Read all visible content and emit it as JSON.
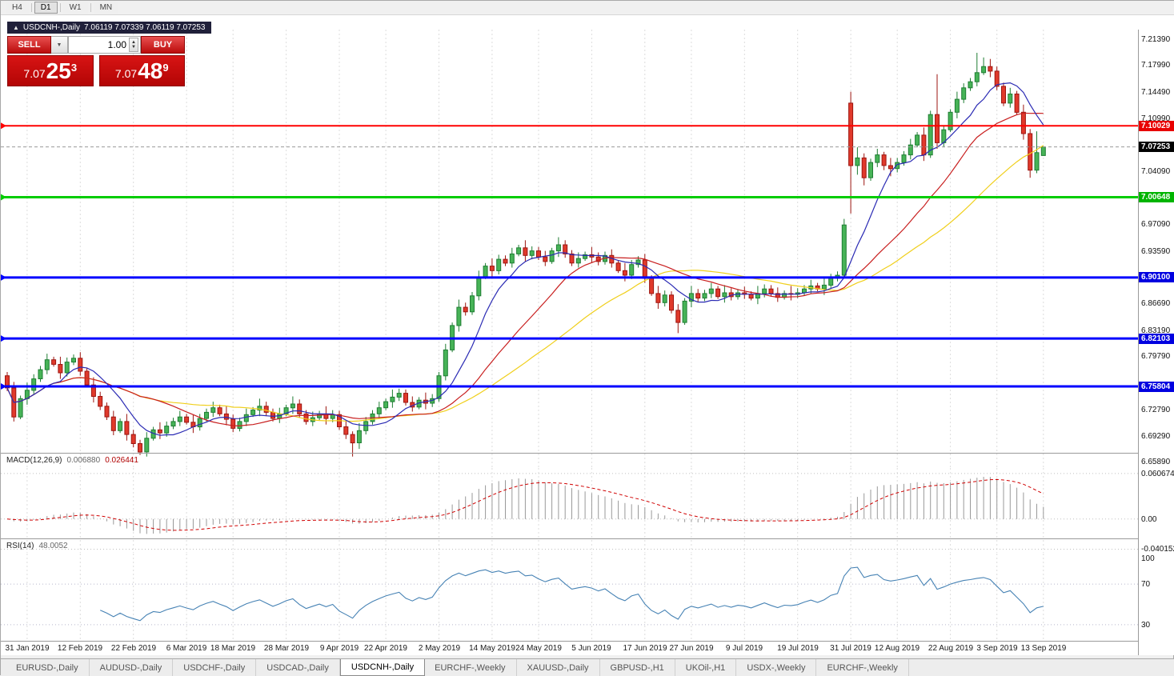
{
  "window": {
    "timeframes": [
      {
        "label": "H4",
        "active": false
      },
      {
        "label": "D1",
        "active": true
      },
      {
        "label": "W1",
        "active": false
      },
      {
        "label": "MN",
        "active": false
      }
    ]
  },
  "chart": {
    "marker": "▲",
    "title": "USDCNH-,Daily",
    "ohlc": "7.06119 7.07339 7.06119 7.07253"
  },
  "trade_panel": {
    "sell_label": "SELL",
    "buy_label": "BUY",
    "volume": "1.00",
    "sell_price": {
      "big": "7.07",
      "pips": "25",
      "sup": "3"
    },
    "buy_price": {
      "big": "7.07",
      "pips": "48",
      "sup": "9"
    }
  },
  "price_axis": {
    "labels": [
      {
        "text": "7.21390",
        "price": 7.2139
      },
      {
        "text": "7.17990",
        "price": 7.1799
      },
      {
        "text": "7.14490",
        "price": 7.1449
      },
      {
        "text": "7.10990",
        "price": 7.1099
      },
      {
        "text": "7.04090",
        "price": 7.0409
      },
      {
        "text": "6.97090",
        "price": 6.9709
      },
      {
        "text": "6.93590",
        "price": 6.9359
      },
      {
        "text": "6.86690",
        "price": 6.8669
      },
      {
        "text": "6.83190",
        "price": 6.8319
      },
      {
        "text": "6.79790",
        "price": 6.7979
      },
      {
        "text": "6.72790",
        "price": 6.7279
      },
      {
        "text": "6.69290",
        "price": 6.6929
      },
      {
        "text": "6.65890",
        "price": 6.6589
      }
    ],
    "badges": [
      {
        "text": "7.10029",
        "price": 7.10029,
        "bg": "#e80000"
      },
      {
        "text": "7.07253",
        "price": 7.07253,
        "bg": "#000000"
      },
      {
        "text": "7.00648",
        "price": 7.00648,
        "bg": "#00b400"
      },
      {
        "text": "6.90100",
        "price": 6.901,
        "bg": "#0000e0"
      },
      {
        "text": "6.82103",
        "price": 6.82103,
        "bg": "#0000e0"
      },
      {
        "text": "6.75804",
        "price": 6.75804,
        "bg": "#0000e0"
      }
    ]
  },
  "hlines": [
    {
      "price": 7.10029,
      "color": "#ff0000",
      "width": 2
    },
    {
      "price": 7.00648,
      "color": "#00cc00",
      "width": 3
    },
    {
      "price": 6.901,
      "color": "#0000ff",
      "width": 3
    },
    {
      "price": 6.82103,
      "color": "#0000ff",
      "width": 3
    },
    {
      "price": 6.75804,
      "color": "#0000ff",
      "width": 3
    }
  ],
  "current_price": 7.07253,
  "indicators": {
    "macd": {
      "label": "MACD(12,26,9)",
      "value1": "0.006880",
      "value2": "0.026441",
      "axis": {
        "max": 0.068,
        "min": -0.045,
        "labels": [
          {
            "text": "0.060674",
            "value": 0.060674
          },
          {
            "text": "0.00",
            "value": 0
          },
          {
            "text": "-0.040152",
            "value": -0.040152
          }
        ],
        "levels": [
          0.060674,
          0,
          -0.040152
        ]
      }
    },
    "rsi": {
      "label": "RSI(14)",
      "value": "48.0052",
      "axis": {
        "max": 100,
        "min": 0,
        "labels": [
          {
            "text": "100",
            "value": 100
          },
          {
            "text": "70",
            "value": 70
          },
          {
            "text": "30",
            "value": 30
          }
        ],
        "levels": [
          70,
          30
        ]
      }
    }
  },
  "date_axis": {
    "ticks": [
      {
        "label": "31 Jan 2019",
        "index": 3
      },
      {
        "label": "12 Feb 2019",
        "index": 11
      },
      {
        "label": "22 Feb 2019",
        "index": 19
      },
      {
        "label": "6 Mar 2019",
        "index": 27
      },
      {
        "label": "18 Mar 2019",
        "index": 34
      },
      {
        "label": "28 Mar 2019",
        "index": 42
      },
      {
        "label": "9 Apr 2019",
        "index": 50
      },
      {
        "label": "22 Apr 2019",
        "index": 57
      },
      {
        "label": "2 May 2019",
        "index": 65
      },
      {
        "label": "14 May 2019",
        "index": 73
      },
      {
        "label": "24 May 2019",
        "index": 80
      },
      {
        "label": "5 Jun 2019",
        "index": 88
      },
      {
        "label": "17 Jun 2019",
        "index": 96
      },
      {
        "label": "27 Jun 2019",
        "index": 103
      },
      {
        "label": "9 Jul 2019",
        "index": 111
      },
      {
        "label": "19 Jul 2019",
        "index": 119
      },
      {
        "label": "31 Jul 2019",
        "index": 127
      },
      {
        "label": "12 Aug 2019",
        "index": 134
      },
      {
        "label": "22 Aug 2019",
        "index": 142
      },
      {
        "label": "3 Sep 2019",
        "index": 149
      },
      {
        "label": "13 Sep 2019",
        "index": 156
      }
    ]
  },
  "tabs": [
    {
      "label": "EURUSD-,Daily",
      "active": false
    },
    {
      "label": "AUDUSD-,Daily",
      "active": false
    },
    {
      "label": "USDCHF-,Daily",
      "active": false
    },
    {
      "label": "USDCAD-,Daily",
      "active": false
    },
    {
      "label": "USDCNH-,Daily",
      "active": true
    },
    {
      "label": "EURCHF-,Weekly",
      "active": false
    },
    {
      "label": "XAUUSD-,Daily",
      "active": false
    },
    {
      "label": "GBPUSD-,H1",
      "active": false
    },
    {
      "label": "UKOil-,H1",
      "active": false
    },
    {
      "label": "USDX-,Weekly",
      "active": false
    },
    {
      "label": "EURCHF-,Weekly",
      "active": false
    }
  ],
  "chart_data": {
    "type": "candlestick",
    "symbol": "USDCNH-",
    "timeframe": "Daily",
    "axes": {
      "price": {
        "max": 7.2265,
        "min": 6.652
      },
      "macd": {
        "max": 0.068,
        "min": -0.045
      },
      "rsi": {
        "max": 100,
        "min": 0
      }
    },
    "indicator_params": {
      "macd": [
        12,
        26,
        9
      ],
      "rsi": 14,
      "ma_periods": {
        "blue": 8,
        "red": 20,
        "yellow": 34
      }
    },
    "colors": {
      "up_fill": "#47b357",
      "up_stroke": "#1e7d32",
      "down_fill": "#e0392b",
      "down_stroke": "#9c1510",
      "ma_blue": "#2b2bb4",
      "ma_red": "#c81e1e",
      "ma_yellow": "#f0cf1b",
      "macd_bar": "#999999",
      "macd_signal": "#d00000",
      "rsi_line": "#4682b4"
    },
    "candles": [
      [
        6.772,
        6.777,
        6.752,
        6.756
      ],
      [
        6.756,
        6.764,
        6.712,
        6.718
      ],
      [
        6.718,
        6.746,
        6.715,
        6.742
      ],
      [
        6.742,
        6.763,
        6.734,
        6.753
      ],
      [
        6.753,
        6.774,
        6.748,
        6.768
      ],
      [
        6.768,
        6.785,
        6.764,
        6.78
      ],
      [
        6.78,
        6.801,
        6.774,
        6.793
      ],
      [
        6.793,
        6.797,
        6.784,
        6.787
      ],
      [
        6.787,
        6.797,
        6.768,
        6.776
      ],
      [
        6.776,
        6.796,
        6.771,
        6.79
      ],
      [
        6.79,
        6.8,
        6.786,
        6.795
      ],
      [
        6.795,
        6.803,
        6.772,
        6.778
      ],
      [
        6.778,
        6.782,
        6.757,
        6.76
      ],
      [
        6.76,
        6.77,
        6.737,
        6.745
      ],
      [
        6.745,
        6.751,
        6.727,
        6.732
      ],
      [
        6.732,
        6.737,
        6.714,
        6.718
      ],
      [
        6.718,
        6.726,
        6.694,
        6.7
      ],
      [
        6.7,
        6.716,
        6.697,
        6.712
      ],
      [
        6.712,
        6.722,
        6.687,
        6.695
      ],
      [
        6.695,
        6.701,
        6.678,
        6.683
      ],
      [
        6.683,
        6.688,
        6.668,
        6.672
      ],
      [
        6.672,
        6.698,
        6.666,
        6.69
      ],
      [
        6.69,
        6.705,
        6.687,
        6.701
      ],
      [
        6.701,
        6.711,
        6.689,
        6.697
      ],
      [
        6.697,
        6.712,
        6.692,
        6.706
      ],
      [
        6.706,
        6.717,
        6.702,
        6.712
      ],
      [
        6.712,
        6.726,
        6.706,
        6.718
      ],
      [
        6.718,
        6.722,
        6.708,
        6.711
      ],
      [
        6.711,
        6.721,
        6.697,
        6.705
      ],
      [
        6.705,
        6.722,
        6.7,
        6.716
      ],
      [
        6.716,
        6.729,
        6.712,
        6.724
      ],
      [
        6.724,
        6.738,
        6.718,
        6.73
      ],
      [
        6.73,
        6.734,
        6.719,
        6.722
      ],
      [
        6.722,
        6.732,
        6.707,
        6.715
      ],
      [
        6.715,
        6.721,
        6.698,
        6.703
      ],
      [
        6.703,
        6.717,
        6.699,
        6.712
      ],
      [
        6.712,
        6.729,
        6.706,
        6.721
      ],
      [
        6.721,
        6.731,
        6.718,
        6.727
      ],
      [
        6.727,
        6.742,
        6.719,
        6.732
      ],
      [
        6.732,
        6.738,
        6.719,
        6.724
      ],
      [
        6.724,
        6.729,
        6.712,
        6.716
      ],
      [
        6.716,
        6.73,
        6.71,
        6.722
      ],
      [
        6.722,
        6.734,
        6.719,
        6.73
      ],
      [
        6.73,
        6.745,
        6.722,
        6.735
      ],
      [
        6.735,
        6.741,
        6.717,
        6.722
      ],
      [
        6.722,
        6.727,
        6.708,
        6.712
      ],
      [
        6.712,
        6.725,
        6.706,
        6.717
      ],
      [
        6.717,
        6.726,
        6.714,
        6.722
      ],
      [
        6.722,
        6.732,
        6.708,
        6.716
      ],
      [
        6.716,
        6.727,
        6.711,
        6.721
      ],
      [
        6.721,
        6.726,
        6.701,
        6.705
      ],
      [
        6.705,
        6.713,
        6.689,
        6.695
      ],
      [
        6.695,
        6.699,
        6.666,
        6.684
      ],
      [
        6.684,
        6.71,
        6.676,
        6.7
      ],
      [
        6.7,
        6.718,
        6.695,
        6.712
      ],
      [
        6.712,
        6.727,
        6.708,
        6.722
      ],
      [
        6.722,
        6.738,
        6.716,
        6.73
      ],
      [
        6.73,
        6.742,
        6.727,
        6.738
      ],
      [
        6.738,
        6.754,
        6.73,
        6.744
      ],
      [
        6.744,
        6.755,
        6.739,
        6.749
      ],
      [
        6.749,
        6.754,
        6.733,
        6.737
      ],
      [
        6.737,
        6.745,
        6.725,
        6.731
      ],
      [
        6.731,
        6.744,
        6.728,
        6.74
      ],
      [
        6.74,
        6.75,
        6.728,
        6.736
      ],
      [
        6.736,
        6.748,
        6.731,
        6.742
      ],
      [
        6.742,
        6.777,
        6.738,
        6.772
      ],
      [
        6.772,
        6.814,
        6.766,
        6.806
      ],
      [
        6.806,
        6.842,
        6.803,
        6.838
      ],
      [
        6.838,
        6.872,
        6.83,
        6.862
      ],
      [
        6.862,
        6.868,
        6.851,
        6.856
      ],
      [
        6.856,
        6.882,
        6.852,
        6.877
      ],
      [
        6.877,
        6.91,
        6.871,
        6.902
      ],
      [
        6.902,
        6.92,
        6.899,
        6.916
      ],
      [
        6.916,
        6.926,
        6.902,
        6.91
      ],
      [
        6.91,
        6.931,
        6.905,
        6.925
      ],
      [
        6.925,
        6.93,
        6.916,
        6.92
      ],
      [
        6.92,
        6.94,
        6.914,
        6.932
      ],
      [
        6.932,
        6.944,
        6.929,
        6.94
      ],
      [
        6.94,
        6.95,
        6.922,
        6.93
      ],
      [
        6.93,
        6.942,
        6.925,
        6.936
      ],
      [
        6.936,
        6.941,
        6.924,
        6.928
      ],
      [
        6.928,
        6.936,
        6.916,
        6.922
      ],
      [
        6.922,
        6.94,
        6.919,
        6.936
      ],
      [
        6.936,
        6.954,
        6.928,
        6.944
      ],
      [
        6.944,
        6.95,
        6.927,
        6.932
      ],
      [
        6.932,
        6.937,
        6.916,
        6.92
      ],
      [
        6.92,
        6.934,
        6.914,
        6.926
      ],
      [
        6.926,
        6.935,
        6.923,
        6.931
      ],
      [
        6.931,
        6.941,
        6.92,
        6.928
      ],
      [
        6.928,
        6.934,
        6.917,
        6.922
      ],
      [
        6.922,
        6.935,
        6.918,
        6.93
      ],
      [
        6.93,
        6.938,
        6.914,
        6.92
      ],
      [
        6.92,
        6.924,
        6.907,
        6.91
      ],
      [
        6.91,
        6.92,
        6.896,
        6.904
      ],
      [
        6.904,
        6.924,
        6.899,
        6.918
      ],
      [
        6.918,
        6.929,
        6.914,
        6.924
      ],
      [
        6.924,
        6.932,
        6.894,
        6.9
      ],
      [
        6.9,
        6.904,
        6.877,
        6.88
      ],
      [
        6.88,
        6.89,
        6.86,
        6.868
      ],
      [
        6.868,
        6.884,
        6.863,
        6.878
      ],
      [
        6.878,
        6.883,
        6.854,
        6.858
      ],
      [
        6.858,
        6.866,
        6.828,
        6.842
      ],
      [
        6.842,
        6.874,
        6.839,
        6.87
      ],
      [
        6.87,
        6.89,
        6.862,
        6.88
      ],
      [
        6.88,
        6.886,
        6.869,
        6.874
      ],
      [
        6.874,
        6.885,
        6.87,
        6.88
      ],
      [
        6.88,
        6.894,
        6.874,
        6.886
      ],
      [
        6.886,
        6.89,
        6.873,
        6.876
      ],
      [
        6.876,
        6.891,
        6.868,
        6.881
      ],
      [
        6.881,
        6.887,
        6.871,
        6.876
      ],
      [
        6.876,
        6.886,
        6.872,
        6.881
      ],
      [
        6.881,
        6.889,
        6.873,
        6.879
      ],
      [
        6.879,
        6.883,
        6.871,
        6.874
      ],
      [
        6.874,
        6.89,
        6.866,
        6.88
      ],
      [
        6.88,
        6.892,
        6.875,
        6.886
      ],
      [
        6.886,
        6.891,
        6.876,
        6.88
      ],
      [
        6.88,
        6.888,
        6.869,
        6.875
      ],
      [
        6.875,
        6.884,
        6.872,
        6.88
      ],
      [
        6.88,
        6.89,
        6.871,
        6.879
      ],
      [
        6.879,
        6.887,
        6.874,
        6.881
      ],
      [
        6.881,
        6.891,
        6.877,
        6.886
      ],
      [
        6.886,
        6.898,
        6.88,
        6.89
      ],
      [
        6.89,
        6.894,
        6.883,
        6.886
      ],
      [
        6.886,
        6.901,
        6.878,
        6.891
      ],
      [
        6.891,
        6.906,
        6.886,
        6.9
      ],
      [
        6.9,
        6.909,
        6.896,
        6.904
      ],
      [
        6.904,
        6.978,
        6.9,
        6.97
      ],
      [
        7.13,
        7.145,
        6.985,
        7.048
      ],
      [
        7.048,
        7.072,
        7.036,
        7.058
      ],
      [
        7.058,
        7.064,
        7.022,
        7.032
      ],
      [
        7.032,
        7.057,
        7.028,
        7.052
      ],
      [
        7.052,
        7.07,
        7.046,
        7.062
      ],
      [
        7.062,
        7.066,
        7.042,
        7.048
      ],
      [
        7.048,
        7.058,
        7.034,
        7.044
      ],
      [
        7.044,
        7.058,
        7.039,
        7.052
      ],
      [
        7.052,
        7.067,
        7.048,
        7.062
      ],
      [
        7.062,
        7.083,
        7.056,
        7.075
      ],
      [
        7.075,
        7.092,
        7.072,
        7.088
      ],
      [
        7.088,
        7.098,
        7.054,
        7.062
      ],
      [
        7.062,
        7.12,
        7.058,
        7.115
      ],
      [
        7.115,
        7.168,
        7.07,
        7.078
      ],
      [
        7.078,
        7.1,
        7.072,
        7.095
      ],
      [
        7.095,
        7.122,
        7.092,
        7.118
      ],
      [
        7.118,
        7.145,
        7.11,
        7.135
      ],
      [
        7.135,
        7.156,
        7.13,
        7.15
      ],
      [
        7.15,
        7.163,
        7.146,
        7.158
      ],
      [
        7.158,
        7.196,
        7.152,
        7.17
      ],
      [
        7.17,
        7.19,
        7.167,
        7.178
      ],
      [
        7.178,
        7.188,
        7.164,
        7.172
      ],
      [
        7.172,
        7.178,
        7.147,
        7.152
      ],
      [
        7.152,
        7.157,
        7.126,
        7.13
      ],
      [
        7.13,
        7.15,
        7.124,
        7.142
      ],
      [
        7.142,
        7.146,
        7.115,
        7.118
      ],
      [
        7.118,
        7.128,
        7.082,
        7.09
      ],
      [
        7.09,
        7.096,
        7.032,
        7.042
      ],
      [
        7.042,
        7.093,
        7.038,
        7.065
      ],
      [
        7.06119,
        7.07339,
        7.06119,
        7.07253
      ]
    ]
  }
}
